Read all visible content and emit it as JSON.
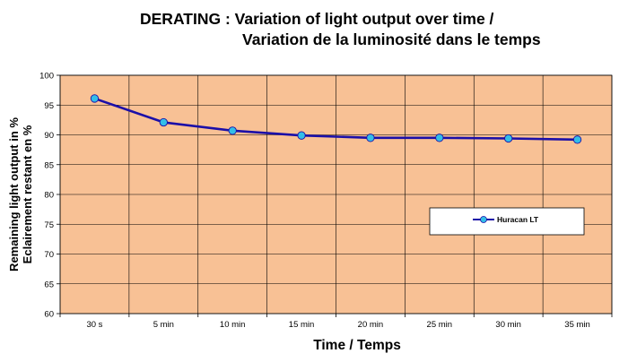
{
  "chart_data": {
    "type": "line",
    "title_line1": "DERATING : Variation of light output over time /",
    "title_line2": "Variation de la luminosité dans le temps",
    "xlabel": "Time / Temps",
    "ylabel_line1": "Remaining light output in %",
    "ylabel_line2": "Eclairement restant en %",
    "categories": [
      "30 s",
      "5 min",
      "10 min",
      "15 min",
      "20 min",
      "25 min",
      "30 min",
      "35 min"
    ],
    "ylim": [
      60,
      100
    ],
    "yticks": [
      60,
      65,
      70,
      75,
      80,
      85,
      90,
      95,
      100
    ],
    "grid": true,
    "legend_position": "right",
    "series": [
      {
        "name": "Huracan LT",
        "values": [
          96.1,
          92.1,
          90.7,
          89.9,
          89.5,
          89.5,
          89.4,
          89.2
        ]
      }
    ],
    "colors": {
      "plot_background": "#F8C195",
      "line": "#1B0FA8",
      "marker": "#33BEE8",
      "grid": "#000000"
    }
  }
}
